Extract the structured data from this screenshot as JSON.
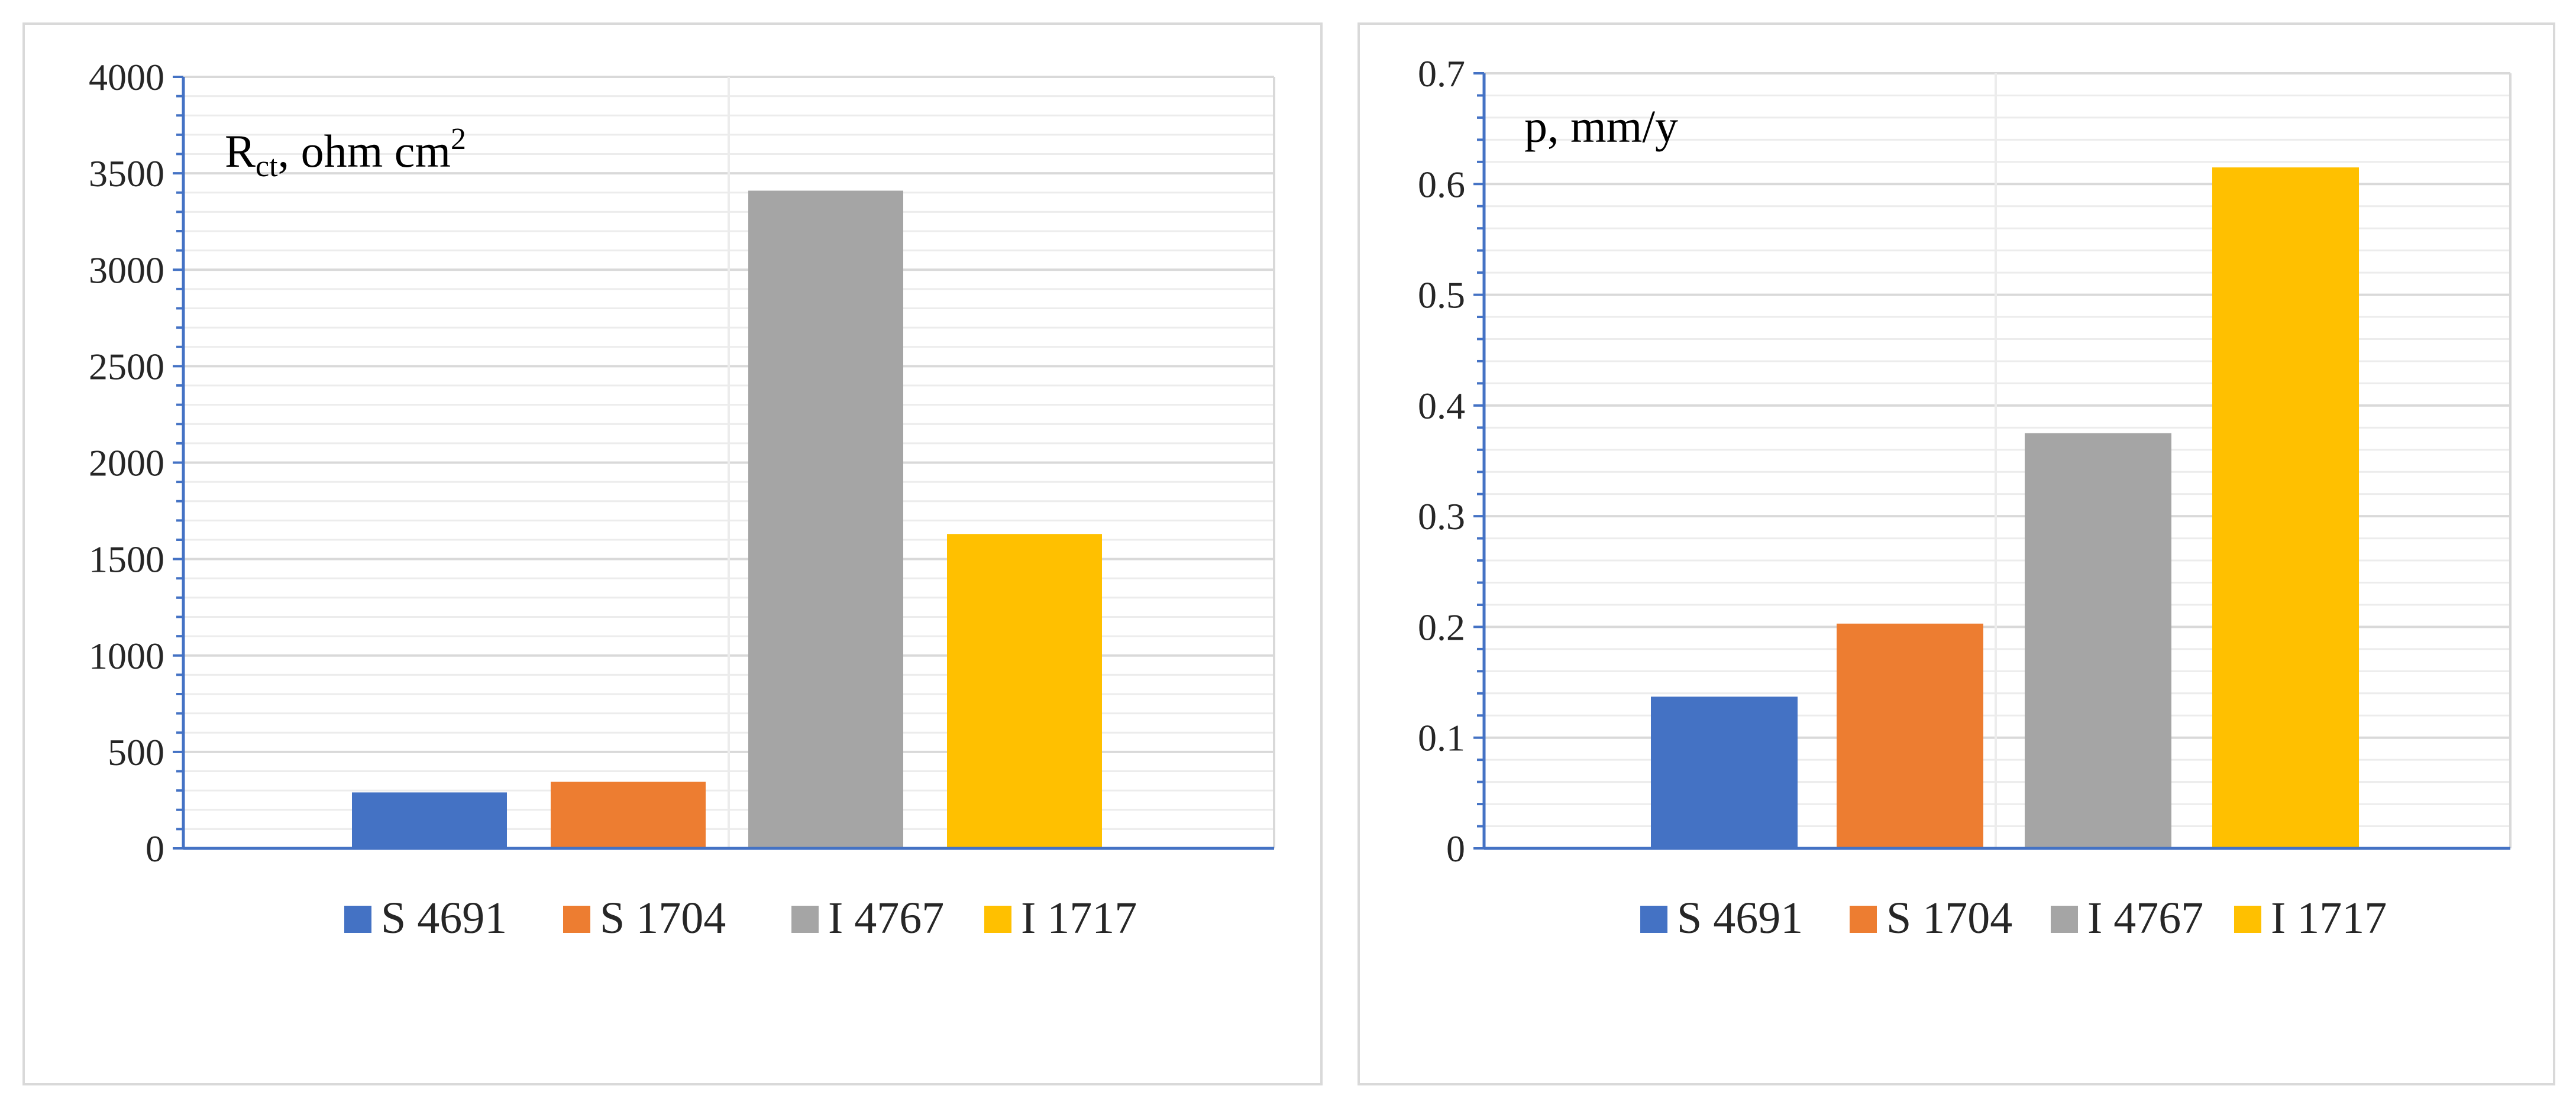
{
  "colors": {
    "S 4691": "#4472c4",
    "S 1704": "#ed7d31",
    "I 4767": "#a5a5a5",
    "I 1717": "#ffc000",
    "axis": "#4472c4",
    "grid": "#d9d9d9"
  },
  "chart_data": [
    {
      "type": "bar",
      "title_main": "R",
      "title_sub": "ct",
      "title_rest": ", ohm cm",
      "title_sup": "2",
      "categories": [
        "S 4691",
        "S 1704",
        "I 4767",
        "I 1717"
      ],
      "values": [
        290,
        345,
        3410,
        1630
      ],
      "ylim": [
        0,
        4000
      ],
      "yticks": [
        0,
        500,
        1000,
        1500,
        2000,
        2500,
        3000,
        3500,
        4000
      ],
      "ytick_labels": [
        "0",
        "500",
        "1000",
        "1500",
        "2000",
        "2500",
        "3000",
        "3500",
        "4000"
      ],
      "legend": [
        "S 4691",
        "S 1704",
        "I 4767",
        "I 1717"
      ],
      "legend_position": "bottom",
      "grid": true
    },
    {
      "type": "bar",
      "title": "p, mm/y",
      "categories": [
        "S 4691",
        "S 1704",
        "I 4767",
        "I 1717"
      ],
      "values": [
        0.137,
        0.203,
        0.375,
        0.615
      ],
      "ylim": [
        0,
        0.7
      ],
      "yticks": [
        0,
        0.1,
        0.2,
        0.3,
        0.4,
        0.5,
        0.6,
        0.7
      ],
      "ytick_labels": [
        "0",
        "0.1",
        "0.2",
        "0.3",
        "0.4",
        "0.5",
        "0.6",
        "0.7"
      ],
      "legend": [
        "S 4691",
        "S 1704",
        "I 4767",
        "I 1717"
      ],
      "legend_position": "bottom",
      "grid": true
    }
  ]
}
